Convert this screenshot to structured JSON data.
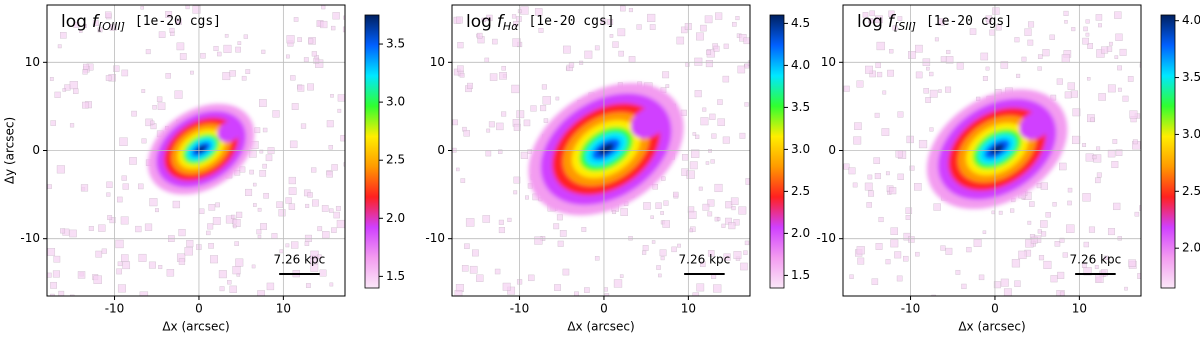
{
  "chart_data": [
    {
      "type": "image",
      "title_prefix": "log",
      "title_symbol": "f",
      "title_subscript": "[OIII]",
      "unit": "[1e-20 cgs]",
      "xlabel": "Δx (arcsec)",
      "ylabel": "Δy (arcsec)",
      "xlim": [
        -18,
        17.3
      ],
      "ylim": [
        -16.5,
        16.5
      ],
      "xticks": [
        -10,
        0,
        10
      ],
      "yticks": [
        -10,
        0,
        10
      ],
      "grid": true,
      "scalebar_label": "7.26 kpc",
      "clim": [
        1.4,
        3.75
      ],
      "cticks": [
        {
          "value": 1.5,
          "label": "1.5"
        },
        {
          "value": 2,
          "label": "2.0"
        },
        {
          "value": 2.5,
          "label": "2.5"
        },
        {
          "value": 3,
          "label": "3.0"
        },
        {
          "value": 3.5,
          "label": "3.5"
        }
      ],
      "colormap": [
        "#fbe8f8",
        "#f39cf0",
        "#d040ff",
        "#ff2020",
        "#ff9a00",
        "#ffee00",
        "#30ff30",
        "#00e8ff",
        "#0060ff",
        "#002060"
      ]
    },
    {
      "type": "image",
      "title_prefix": "log",
      "title_symbol": "f",
      "title_subscript": "Hα",
      "unit": "[1e-20 cgs]",
      "xlabel": "Δx (arcsec)",
      "xlim": [
        -18,
        17.3
      ],
      "ylim": [
        -16.5,
        16.5
      ],
      "xticks": [
        -10,
        0,
        10
      ],
      "yticks": [
        -10,
        0,
        10
      ],
      "grid": true,
      "scalebar_label": "7.26 kpc",
      "clim": [
        1.35,
        4.6
      ],
      "cticks": [
        {
          "value": 1.5,
          "label": "1.5"
        },
        {
          "value": 2,
          "label": "2.0"
        },
        {
          "value": 2.5,
          "label": "2.5"
        },
        {
          "value": 3,
          "label": "3.0"
        },
        {
          "value": 3.5,
          "label": "3.5"
        },
        {
          "value": 4,
          "label": "4.0"
        },
        {
          "value": 4.5,
          "label": "4.5"
        }
      ],
      "colormap": [
        "#fbe8f8",
        "#f39cf0",
        "#d040ff",
        "#ff2020",
        "#ff9a00",
        "#ffee00",
        "#30ff30",
        "#00e8ff",
        "#0060ff",
        "#002060"
      ]
    },
    {
      "type": "image",
      "title_prefix": "log",
      "title_symbol": "f",
      "title_subscript": "[SII]",
      "unit": "[1e-20 cgs]",
      "xlabel": "Δx (arcsec)",
      "xlim": [
        -18,
        17.3
      ],
      "ylim": [
        -16.5,
        16.5
      ],
      "xticks": [
        -10,
        0,
        10
      ],
      "yticks": [
        -10,
        0,
        10
      ],
      "grid": true,
      "scalebar_label": "7.26 kpc",
      "clim": [
        1.65,
        4.05
      ],
      "cticks": [
        {
          "value": 2,
          "label": "2.0"
        },
        {
          "value": 2.5,
          "label": "2.5"
        },
        {
          "value": 3,
          "label": "3.0"
        },
        {
          "value": 3.5,
          "label": "3.5"
        },
        {
          "value": 4,
          "label": "4.0"
        }
      ],
      "colormap": [
        "#fbe8f8",
        "#f39cf0",
        "#d040ff",
        "#ff2020",
        "#ff9a00",
        "#ffee00",
        "#30ff30",
        "#00e8ff",
        "#0060ff",
        "#002060"
      ]
    }
  ]
}
